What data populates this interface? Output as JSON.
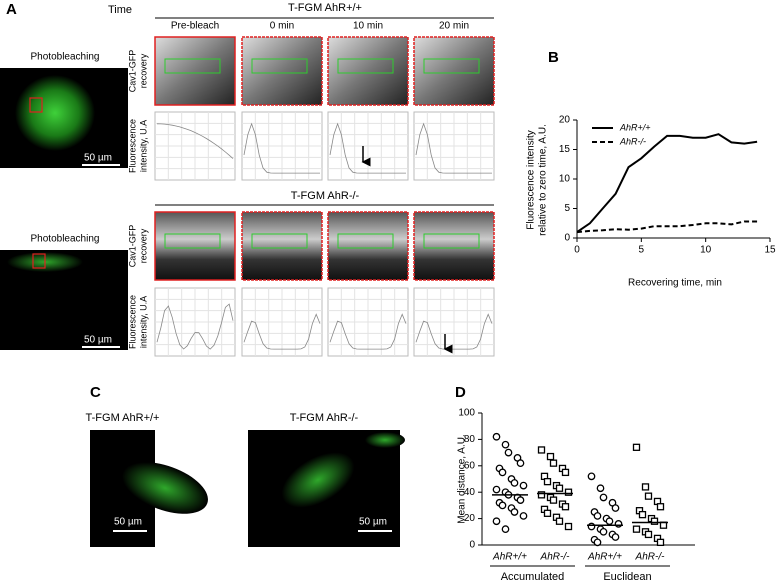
{
  "panel_A": {
    "panel_label": "A",
    "time_label": "Time",
    "photobleaching": "Photobleaching",
    "scale_bar": "50 µm",
    "blocks": [
      {
        "title": "T-FGM AhR+/+"
      },
      {
        "title": "T-FGM AhR-/-"
      }
    ],
    "columns": [
      "Pre-bleach",
      "0 min",
      "10 min",
      "20 min"
    ],
    "row_labels": [
      [
        "Cav1-GFP",
        "recovery"
      ],
      [
        "Fluorescence",
        "intensity, U.A"
      ]
    ]
  },
  "chart_data": [
    {
      "type": "line",
      "panel_label": "B",
      "x": [
        0,
        1,
        2,
        3,
        4,
        5,
        6,
        7,
        8,
        9,
        10,
        11,
        12,
        13,
        14
      ],
      "series": [
        {
          "name": "AhR+/+",
          "color": "#000000",
          "line_style": "solid",
          "values": [
            1,
            2.5,
            5,
            7.5,
            12,
            13.5,
            15.5,
            17.3,
            17.3,
            17,
            17,
            17.6,
            16.2,
            16,
            16.3
          ]
        },
        {
          "name": "AhR-/-",
          "color": "#000000",
          "line_style": "dashed",
          "values": [
            1,
            1.2,
            1.3,
            1.5,
            1.4,
            1.6,
            2,
            2,
            2,
            2.2,
            2.5,
            2.5,
            2.3,
            2.8,
            2.8
          ]
        }
      ],
      "xlim": [
        0,
        15
      ],
      "ylim": [
        0,
        20
      ],
      "xticks": [
        0,
        5,
        10,
        15
      ],
      "yticks": [
        0,
        5,
        10,
        15,
        20
      ],
      "xlabel": "Recovering time, min",
      "ylabel": [
        "Fluorescence intensity",
        "relative to zero time, A.U."
      ],
      "legend": "upper-left"
    },
    {
      "type": "scatter",
      "panel_label": "D",
      "categories": [
        "AhR+/+",
        "AhR-/-",
        "AhR+/+",
        "AhR-/-"
      ],
      "groups": [
        "Accumulated",
        "Euclidean"
      ],
      "series": [
        {
          "marker": "circle",
          "mean": 38,
          "values": [
            82,
            76,
            70,
            66,
            62,
            58,
            55,
            50,
            47,
            45,
            42,
            40,
            38,
            36,
            34,
            32,
            30,
            28,
            25,
            22,
            18,
            12
          ]
        },
        {
          "marker": "square",
          "mean": 39,
          "values": [
            72,
            67,
            62,
            58,
            55,
            52,
            48,
            45,
            43,
            40,
            38,
            36,
            34,
            31,
            29,
            27,
            24,
            21,
            18,
            14
          ]
        },
        {
          "marker": "circle",
          "mean": 15,
          "values": [
            52,
            43,
            36,
            32,
            28,
            25,
            22,
            20,
            18,
            16,
            14,
            12,
            10,
            8,
            6,
            4,
            2
          ]
        },
        {
          "marker": "square",
          "mean": 17,
          "values": [
            74,
            44,
            37,
            33,
            29,
            26,
            23,
            20,
            18,
            15,
            12,
            10,
            8,
            5,
            2
          ]
        }
      ],
      "ylim": [
        0,
        100
      ],
      "yticks": [
        0,
        20,
        40,
        60,
        80,
        100
      ],
      "ylabel": "Mean distance, A.U."
    }
  ],
  "panel_C": {
    "panel_label": "C",
    "titles": [
      "T-FGM AhR+/+",
      "T-FGM AhR-/-"
    ],
    "scale_bar": "50 µm"
  }
}
